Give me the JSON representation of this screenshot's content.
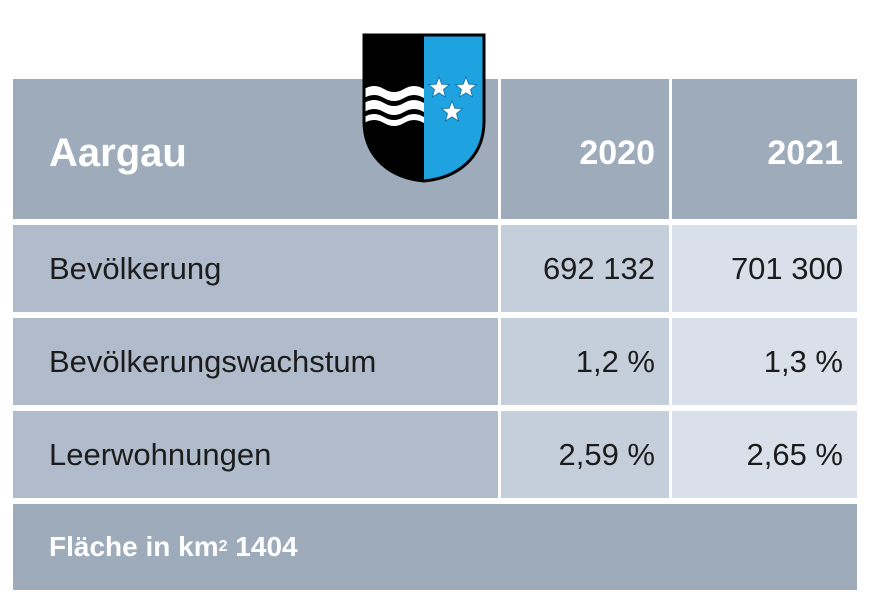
{
  "header": {
    "title": "Aargau",
    "year1": "2020",
    "year2": "2021"
  },
  "rows": [
    {
      "label": "Bevölkerung",
      "v2020": "692 132",
      "v2021": "701 300"
    },
    {
      "label": "Bevölkerungswachstum",
      "v2020": "1,2 %",
      "v2021": "1,3 %"
    },
    {
      "label": "Leerwohnungen",
      "v2020": "2,59 %",
      "v2021": "2,65 %"
    }
  ],
  "footer": {
    "prefix": "Fläche in km",
    "sup": "2",
    "value": " 1404"
  },
  "colors": {
    "header": "#9dabba",
    "label_col": "#b0bccb",
    "col_2020": "#c5cfdb",
    "col_2021": "#d9e0e9",
    "crest_blue": "#1fa3e0",
    "crest_black": "#000000"
  },
  "icons": {
    "crest": "aargau-coat-of-arms-icon",
    "star": "star-icon"
  }
}
